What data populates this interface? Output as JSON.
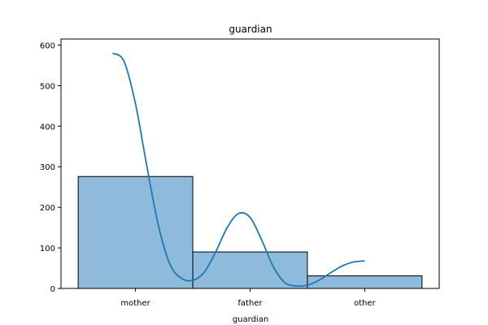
{
  "chart_data": {
    "type": "bar",
    "title": "guardian",
    "xlabel": "guardian",
    "ylabel": "",
    "categories": [
      "mother",
      "father",
      "other"
    ],
    "values": [
      276,
      90,
      31
    ],
    "ylim": [
      0,
      615
    ],
    "yticks": [
      0,
      100,
      200,
      300,
      400,
      500,
      600
    ],
    "bar_color": "#8ebbdc",
    "bar_edge_color": "#000000",
    "kde": {
      "color": "#1f77b4",
      "x": [
        -0.2,
        -0.1,
        0.0,
        0.1,
        0.2,
        0.3,
        0.4,
        0.5,
        0.6,
        0.7,
        0.8,
        0.9,
        1.0,
        1.1,
        1.2,
        1.3,
        1.4,
        1.5,
        1.6,
        1.7,
        1.8,
        1.9,
        2.0
      ],
      "y": [
        580,
        560,
        455,
        300,
        155,
        60,
        25,
        20,
        40,
        90,
        150,
        185,
        175,
        120,
        55,
        15,
        6,
        8,
        20,
        38,
        55,
        65,
        68
      ]
    }
  }
}
